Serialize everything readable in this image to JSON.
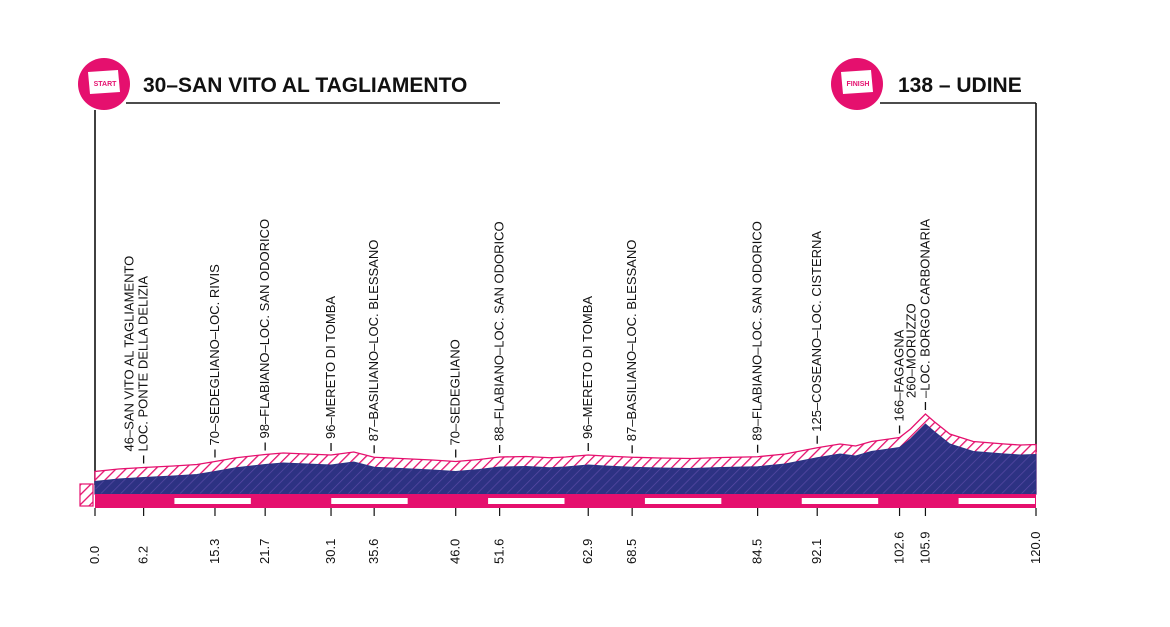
{
  "start": {
    "badge": "START",
    "label": "30–SAN VITO AL TAGLIAMENTO"
  },
  "finish": {
    "badge": "FINISH",
    "label": "138 – UDINE"
  },
  "colors": {
    "accent": "#e5106e",
    "profile": "#2d3283",
    "hatch": "#e5106e",
    "line": "#111111"
  },
  "chart_data": {
    "type": "area",
    "xlim": [
      0,
      120
    ],
    "x_ticks": [
      "0.0",
      "6.2",
      "15.3",
      "21.7",
      "30.1",
      "35.6",
      "46.0",
      "51.6",
      "62.9",
      "68.5",
      "84.5",
      "92.1",
      "102.6",
      "105.9",
      "120.0"
    ],
    "x_tick_values": [
      0,
      6.2,
      15.3,
      21.7,
      30.1,
      35.6,
      46.0,
      51.6,
      62.9,
      68.5,
      84.5,
      92.1,
      102.6,
      105.9,
      120.0
    ],
    "elevation_series": {
      "x": [
        0,
        3,
        6.2,
        10,
        13,
        15.3,
        18,
        21.7,
        24,
        27,
        30.1,
        33,
        35.6,
        39,
        43,
        46.0,
        49,
        51.6,
        55,
        58,
        60,
        62.9,
        65,
        68.5,
        72,
        76,
        80,
        84.5,
        88,
        92.1,
        95,
        97,
        99,
        102.6,
        104,
        105.9,
        107,
        109,
        112,
        116,
        118,
        120
      ],
      "y": [
        30,
        40,
        46,
        52,
        58,
        70,
        85,
        98,
        104,
        100,
        96,
        108,
        87,
        82,
        76,
        70,
        78,
        88,
        90,
        85,
        88,
        96,
        92,
        87,
        84,
        82,
        86,
        89,
        100,
        125,
        140,
        132,
        150,
        166,
        200,
        260,
        230,
        180,
        150,
        140,
        136,
        138
      ]
    },
    "locations": [
      {
        "km": 6.2,
        "lines": [
          "46–SAN VITO AL TAGLIAMENTO",
          "LOC. PONTE DELLA DELIZIA"
        ]
      },
      {
        "km": 15.3,
        "lines": [
          "70–SEDEGLIANO–LOC. RIVIS"
        ]
      },
      {
        "km": 21.7,
        "lines": [
          "98–FLABIANO–LOC. SAN ODORICO"
        ]
      },
      {
        "km": 30.1,
        "lines": [
          "96–MERETO DI TOMBA"
        ]
      },
      {
        "km": 35.6,
        "lines": [
          "87–BASILIANO–LOC. BLESSANO"
        ]
      },
      {
        "km": 46.0,
        "lines": [
          "70–SEDEGLIANO"
        ]
      },
      {
        "km": 51.6,
        "lines": [
          "88–FLABIANO–LOC. SAN ODORICO"
        ]
      },
      {
        "km": 62.9,
        "lines": [
          "96–MERETO DI TOMBA"
        ]
      },
      {
        "km": 68.5,
        "lines": [
          "87–BASILIANO–LOC. BLESSANO"
        ]
      },
      {
        "km": 84.5,
        "lines": [
          "89–FLABIANO–LOC. SAN ODORICO"
        ]
      },
      {
        "km": 92.1,
        "lines": [
          "125–COSEANO–LOC. CISTERNA"
        ]
      },
      {
        "km": 102.6,
        "lines": [
          "166–FAGAGNA"
        ]
      },
      {
        "km": 105.9,
        "lines": [
          "260–MORUZZO",
          "–LOC. BORGO CARBONARIA"
        ]
      }
    ]
  }
}
